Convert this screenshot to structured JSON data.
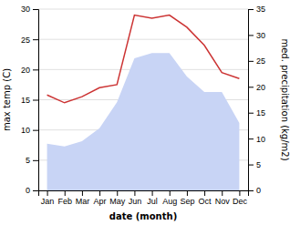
{
  "chart_data": {
    "type": "line",
    "categories": [
      "Jan",
      "Feb",
      "Mar",
      "Apr",
      "May",
      "Jun",
      "Jul",
      "Aug",
      "Sep",
      "Oct",
      "Nov",
      "Dec"
    ],
    "series": [
      {
        "type": "area",
        "color": "#c8d4f5",
        "axis": "y2",
        "values": [
          9.0,
          8.5,
          9.5,
          12.0,
          17.0,
          25.5,
          26.5,
          26.5,
          22.0,
          19.0,
          19.0,
          13.0
        ]
      },
      {
        "type": "line",
        "color": "#cc3333",
        "values": [
          15.8,
          14.5,
          15.5,
          17.0,
          17.5,
          29.0,
          28.5,
          29.0,
          27.0,
          24.0,
          19.5,
          18.5
        ]
      }
    ],
    "xlabel": "date (month)",
    "ylabel": "max temp (C)",
    "y2label": "med. precipitation (kg/m2)",
    "ylim": [
      0,
      30
    ],
    "yticks": [
      0,
      5,
      10,
      15,
      20,
      25,
      30
    ],
    "y2lim": [
      0,
      35
    ],
    "y2ticks": [
      0,
      5,
      10,
      15,
      20,
      25,
      30,
      35
    ],
    "grid": true
  }
}
